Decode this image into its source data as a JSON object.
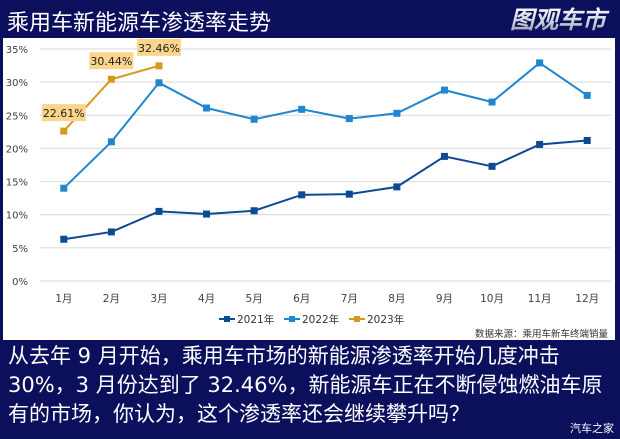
{
  "header": {
    "title": "乘用车新能源车渗透率走势",
    "logo_text": "图观车市"
  },
  "chart_data": {
    "type": "line",
    "title": "乘用车新能源车渗透率走势",
    "xlabel": "",
    "ylabel": "",
    "categories": [
      "1月",
      "2月",
      "3月",
      "4月",
      "5月",
      "6月",
      "7月",
      "8月",
      "9月",
      "10月",
      "11月",
      "12月"
    ],
    "yticks": [
      "0%",
      "5%",
      "10%",
      "15%",
      "20%",
      "25%",
      "30%",
      "35%"
    ],
    "ylim": [
      0,
      35
    ],
    "grid": true,
    "legend_position": "bottom",
    "series": [
      {
        "name": "2021年",
        "color": "#0d4a94",
        "values": [
          6.3,
          7.4,
          10.5,
          10.1,
          10.6,
          13.0,
          13.1,
          14.2,
          18.8,
          17.3,
          20.6,
          21.2
        ]
      },
      {
        "name": "2022年",
        "color": "#1f86cf",
        "values": [
          14.0,
          21.0,
          29.9,
          26.1,
          24.4,
          25.9,
          24.5,
          25.3,
          28.8,
          27.0,
          32.9,
          28.0
        ]
      },
      {
        "name": "2023年",
        "color": "#d39a1c",
        "values": [
          22.61,
          30.44,
          32.46
        ]
      }
    ],
    "annotations": [
      "22.61%",
      "30.44%",
      "32.46%"
    ],
    "source": "数据来源：乘用车新车终端销量"
  },
  "legend": {
    "items": [
      "2021年",
      "2022年",
      "2023年"
    ]
  },
  "source_note": "数据来源：乘用车新车终端销量",
  "footer": {
    "text": "从去年 9 月开始，乘用车市场的新能源渗透率开始几度冲击 30%，3 月份达到了 32.46%，新能源车正在不断侵蚀燃油车原有的市场，你认为，这个渗透率还会继续攀升吗？",
    "watermark": "汽车之家"
  }
}
